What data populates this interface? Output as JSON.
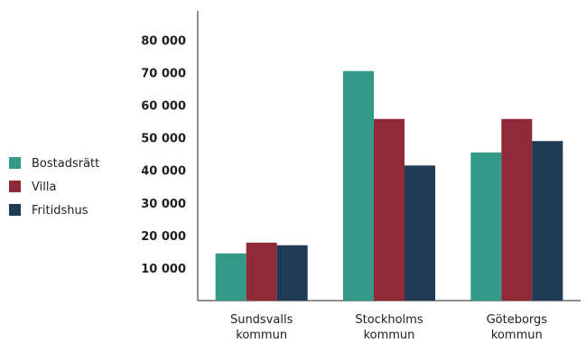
{
  "chart_data": {
    "type": "bar",
    "categories": [
      [
        "Sundsvalls",
        "kommun"
      ],
      [
        "Stockholms",
        "kommun"
      ],
      [
        "Göteborgs",
        "kommun"
      ]
    ],
    "series": [
      {
        "name": "Bostadsrätt",
        "color": "#329a86",
        "values": [
          14500,
          70500,
          45500
        ]
      },
      {
        "name": "Villa",
        "color": "#8f2b38",
        "values": [
          17800,
          55800,
          55800
        ]
      },
      {
        "name": "Fritidshus",
        "color": "#1f3a54",
        "values": [
          17000,
          41500,
          49000
        ]
      }
    ],
    "y_ticks": [
      {
        "value": 10000,
        "label": "10 000"
      },
      {
        "value": 20000,
        "label": "20 000"
      },
      {
        "value": 30000,
        "label": "30 000"
      },
      {
        "value": 40000,
        "label": "40 000"
      },
      {
        "value": 50000,
        "label": "50 000"
      },
      {
        "value": 60000,
        "label": "60 000"
      },
      {
        "value": 70000,
        "label": "70 000"
      },
      {
        "value": 80000,
        "label": "80 000"
      }
    ],
    "ylim": [
      0,
      89000
    ],
    "grid": false,
    "legend_position": "left",
    "title": "",
    "xlabel": "",
    "ylabel": ""
  }
}
